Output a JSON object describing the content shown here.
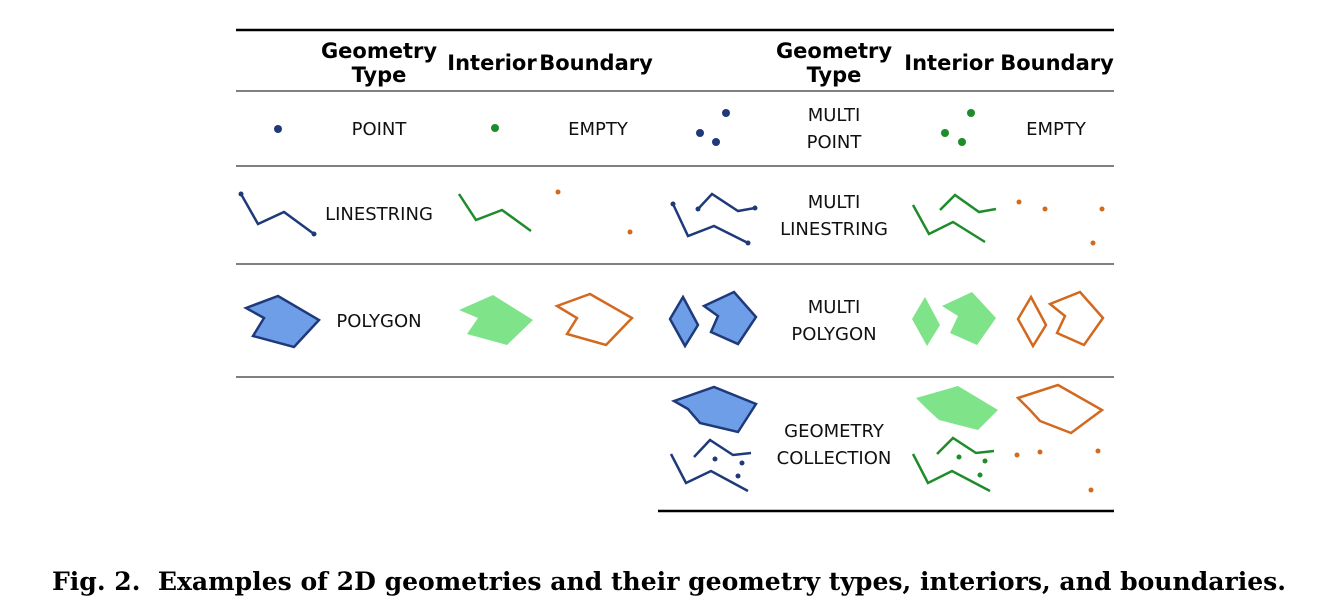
{
  "table": {
    "headers": {
      "left": {
        "type_line1": "Geometry",
        "type_line2": "Type",
        "interior": "Interior",
        "boundary": "Boundary"
      },
      "right": {
        "type_line1": "Geometry",
        "type_line2": "Type",
        "interior": "Interior",
        "boundary": "Boundary"
      }
    },
    "rows": [
      {
        "left_type": "POINT",
        "left_boundary": "EMPTY",
        "right_type_line1": "MULTI",
        "right_type_line2": "POINT",
        "right_boundary": "EMPTY"
      },
      {
        "left_type": "LINESTRING",
        "right_type_line1": "MULTI",
        "right_type_line2": "LINESTRING"
      },
      {
        "left_type": "POLYGON",
        "right_type_line1": "MULTI",
        "right_type_line2": "POLYGON"
      },
      {
        "right_type_line1": "GEOMETRY",
        "right_type_line2": "COLLECTION"
      }
    ]
  },
  "colors": {
    "geometry_stroke": "#1f3a7a",
    "geometry_fill": "#6f9ee8",
    "interior": "#1e8c2a",
    "interior_fill": "#7fe38a",
    "boundary": "#d2691e"
  },
  "caption": "Fig. 2.  Examples of 2D geometries and their geometry types, interiors, and boundaries."
}
